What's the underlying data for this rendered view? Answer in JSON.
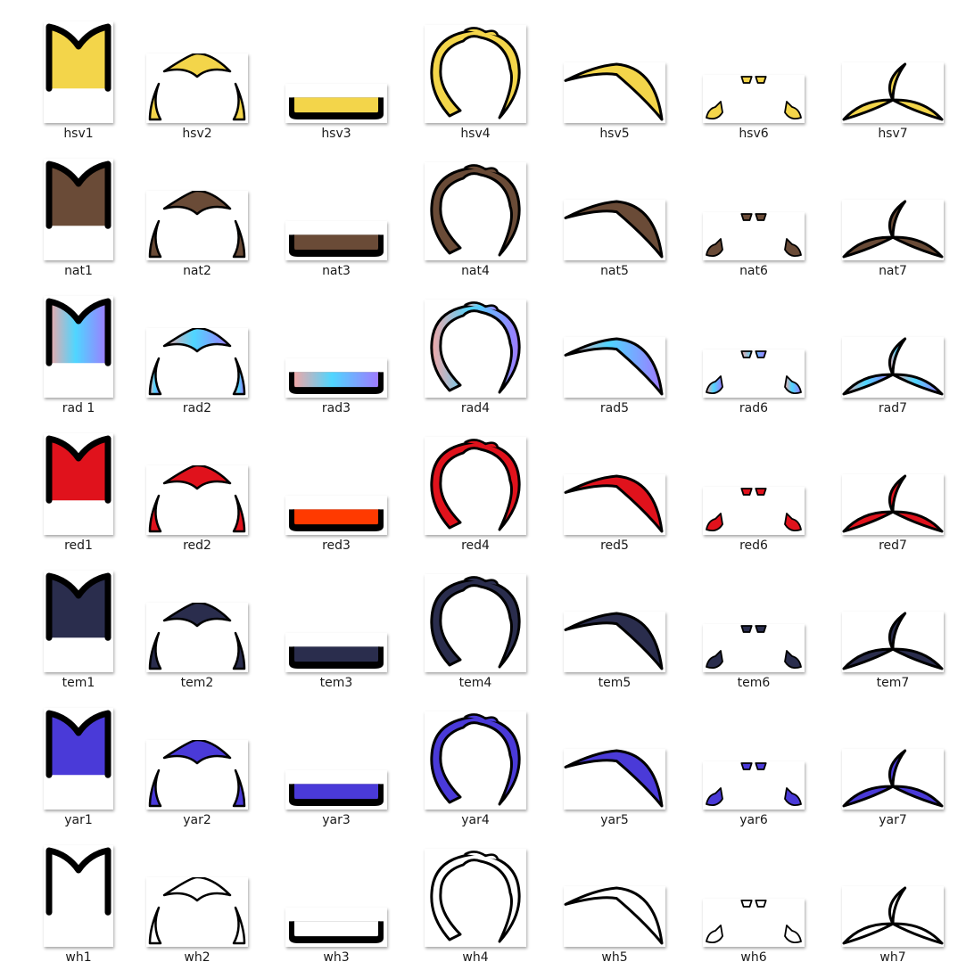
{
  "items": [
    [
      {
        "label": "hsv1"
      },
      {
        "label": "hsv2"
      },
      {
        "label": "hsv3"
      },
      {
        "label": "hsv4"
      },
      {
        "label": "hsv5"
      },
      {
        "label": "hsv6"
      },
      {
        "label": "hsv7"
      }
    ],
    [
      {
        "label": "nat1"
      },
      {
        "label": "nat2"
      },
      {
        "label": "nat3"
      },
      {
        "label": "nat4"
      },
      {
        "label": "nat5"
      },
      {
        "label": "nat6"
      },
      {
        "label": "nat7"
      }
    ],
    [
      {
        "label": "rad 1"
      },
      {
        "label": "rad2"
      },
      {
        "label": "rad3"
      },
      {
        "label": "rad4"
      },
      {
        "label": "rad5"
      },
      {
        "label": "rad6"
      },
      {
        "label": "rad7"
      }
    ],
    [
      {
        "label": "red1"
      },
      {
        "label": "red2"
      },
      {
        "label": "red3"
      },
      {
        "label": "red4"
      },
      {
        "label": "red5"
      },
      {
        "label": "red6"
      },
      {
        "label": "red7"
      }
    ],
    [
      {
        "label": "tem1"
      },
      {
        "label": "tem2"
      },
      {
        "label": "tem3"
      },
      {
        "label": "tem4"
      },
      {
        "label": "tem5"
      },
      {
        "label": "tem6"
      },
      {
        "label": "tem7"
      }
    ],
    [
      {
        "label": "yar1"
      },
      {
        "label": "yar2"
      },
      {
        "label": "yar3"
      },
      {
        "label": "yar4"
      },
      {
        "label": "yar5"
      },
      {
        "label": "yar6"
      },
      {
        "label": "yar7"
      }
    ],
    [
      {
        "label": "wh1"
      },
      {
        "label": "wh2"
      },
      {
        "label": "wh3"
      },
      {
        "label": "wh4"
      },
      {
        "label": "wh5"
      },
      {
        "label": "wh6"
      },
      {
        "label": "wh7"
      }
    ]
  ],
  "colors": {
    "hsv": "#f3d54a",
    "nat": "#6a4b37",
    "rad": "gradient",
    "red": "#e0121c",
    "red3": "#ff3a00",
    "tem": "#2a2d4d",
    "yar": "#4a3ad8",
    "wh": "#ffffff",
    "outline": "#000000"
  },
  "icons": [
    "hair-piece-1-icon",
    "hair-piece-2-icon",
    "hair-piece-3-icon",
    "hair-piece-4-icon",
    "hair-piece-5-icon",
    "hair-piece-6-icon",
    "hair-piece-7-icon"
  ]
}
